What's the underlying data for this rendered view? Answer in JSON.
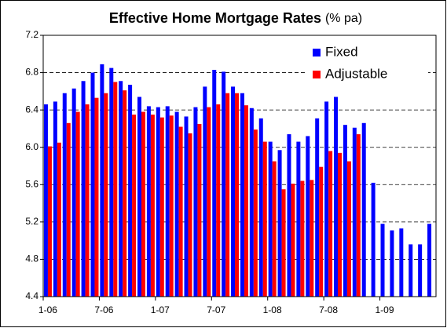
{
  "chart_data": {
    "type": "bar",
    "title": "Effective Home Mortgage Rates",
    "unit": "(% pa)",
    "categories": [
      "1-06",
      null,
      null,
      null,
      null,
      null,
      "7-06",
      null,
      null,
      null,
      null,
      null,
      "1-07",
      null,
      null,
      null,
      null,
      null,
      "7-07",
      null,
      null,
      null,
      null,
      null,
      "1-08",
      null,
      null,
      null,
      null,
      null,
      "7-08",
      null,
      null,
      null,
      null,
      null,
      "1-09",
      null,
      null,
      null,
      null,
      null
    ],
    "series": [
      {
        "name": "Fixed",
        "color": "#0000ff",
        "values": [
          6.46,
          6.49,
          6.58,
          6.63,
          6.71,
          6.8,
          6.89,
          6.85,
          6.71,
          6.67,
          6.54,
          6.44,
          6.43,
          6.44,
          6.38,
          6.33,
          6.43,
          6.65,
          6.83,
          6.81,
          6.65,
          6.58,
          6.42,
          6.31,
          6.06,
          5.97,
          6.14,
          6.06,
          6.12,
          6.31,
          6.49,
          6.54,
          6.24,
          6.21,
          6.26,
          5.62,
          5.18,
          5.11,
          5.13,
          4.96,
          4.96,
          5.18
        ]
      },
      {
        "name": "Adjustable",
        "color": "#ff0000",
        "values": [
          6.01,
          6.05,
          6.26,
          6.38,
          6.46,
          6.53,
          6.58,
          6.7,
          6.61,
          6.35,
          6.38,
          6.35,
          6.32,
          6.34,
          6.22,
          6.15,
          6.25,
          6.43,
          6.46,
          6.58,
          6.58,
          6.45,
          6.19,
          6.06,
          5.85,
          5.55,
          5.61,
          5.64,
          5.65,
          5.79,
          5.96,
          5.94,
          5.85,
          6.14,
          null,
          null,
          null,
          null,
          null,
          null,
          null,
          null
        ]
      }
    ],
    "ylim": [
      4.4,
      7.2
    ],
    "yticks": [
      4.4,
      4.8,
      5.2,
      5.6,
      {
        "value": 6,
        "label": "6.0"
      },
      6.4,
      6.8,
      7.2
    ],
    "grid": true,
    "legend": "upper right"
  }
}
